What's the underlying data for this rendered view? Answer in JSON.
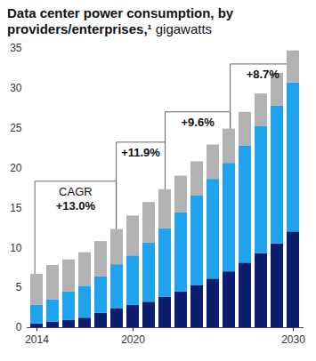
{
  "chart_data": {
    "type": "bar",
    "stacked": true,
    "title": "Data center power consumption, by providers/enterprises,¹",
    "subtitle": "gigawatts",
    "categories": [
      "2014",
      null,
      null,
      null,
      null,
      null,
      "2020",
      null,
      null,
      null,
      null,
      null,
      null,
      null,
      null,
      null,
      "2030"
    ],
    "series": [
      {
        "color": "#0b1e6e",
        "values": [
          0.5,
          0.7,
          0.9,
          1.2,
          1.8,
          2.4,
          2.8,
          3.2,
          3.8,
          4.5,
          5.3,
          6.1,
          7.0,
          8.1,
          9.3,
          10.5,
          12.0
        ]
      },
      {
        "color": "#1fa3ec",
        "values": [
          2.3,
          2.8,
          3.6,
          4.0,
          4.6,
          5.5,
          6.2,
          7.4,
          8.6,
          9.9,
          11.2,
          12.5,
          13.6,
          14.7,
          15.9,
          17.3,
          18.7
        ]
      },
      {
        "color": "#b2b2b2",
        "values": [
          3.9,
          4.3,
          4.0,
          4.2,
          4.4,
          4.4,
          5.0,
          5.1,
          4.9,
          4.6,
          4.3,
          4.3,
          4.3,
          4.2,
          4.1,
          4.1,
          4.0
        ]
      }
    ],
    "ylim": [
      0,
      35
    ],
    "yticks": [
      0,
      5,
      10,
      15,
      20,
      25,
      30,
      35
    ],
    "grid": false,
    "annotations": [
      {
        "text": "CAGR\n+13.0%"
      },
      {
        "text": "+11.9%"
      },
      {
        "text": "+9.6%"
      },
      {
        "text": "+8.7%"
      }
    ]
  }
}
